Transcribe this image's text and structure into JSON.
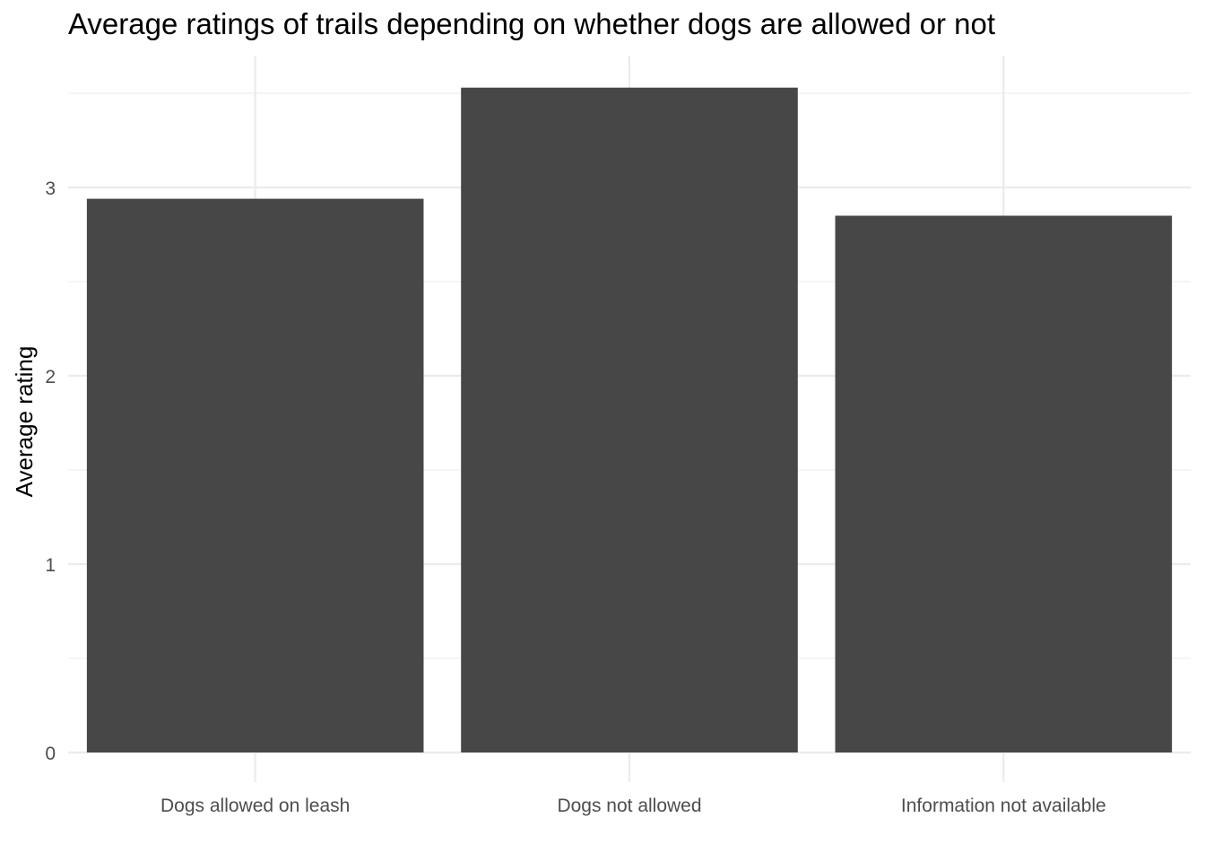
{
  "chart_data": {
    "type": "bar",
    "title": "Average ratings of trails depending on whether dogs are allowed or not",
    "xlabel": "",
    "ylabel": "Average rating",
    "categories": [
      "Dogs allowed on leash",
      "Dogs not allowed",
      "Information not available"
    ],
    "values": [
      2.94,
      3.53,
      2.85
    ],
    "ylim": [
      0,
      3.6
    ],
    "yticks": [
      0,
      1,
      2,
      3
    ],
    "grid": true,
    "bar_color": "#474747",
    "grid_color": "#ebebeb",
    "text_color": "#4d4d4d"
  }
}
